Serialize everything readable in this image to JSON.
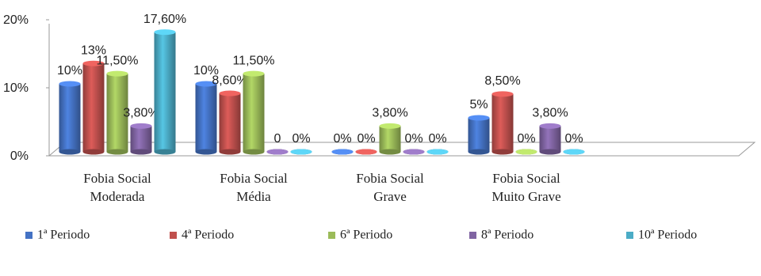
{
  "chart_data": {
    "type": "bar",
    "categories": [
      "Fobia Social Moderada",
      "Fobia Social Média",
      "Fobia Social Grave",
      "Fobia Social Muito Grave"
    ],
    "series": [
      {
        "name": "1ª Periodo",
        "color": "#4472c4",
        "values": [
          10,
          10,
          0,
          5
        ],
        "value_labels": [
          "10%",
          "10%",
          "0%",
          "5%"
        ]
      },
      {
        "name": "4ª Periodo",
        "color": "#c0504d",
        "values": [
          13,
          8.6,
          0,
          8.5
        ],
        "value_labels": [
          "13%",
          "8,60%",
          "0%",
          "8,50%"
        ]
      },
      {
        "name": "6ª Periodo",
        "color": "#9bbb59",
        "values": [
          11.5,
          11.5,
          3.8,
          0
        ],
        "value_labels": [
          "11,50%",
          "11,50%",
          "3,80%",
          "0%"
        ]
      },
      {
        "name": "8ª Periodo",
        "color": "#8064a2",
        "values": [
          3.8,
          0,
          0,
          3.8
        ],
        "value_labels": [
          "3,80%",
          "0",
          "0%",
          "3,80%"
        ]
      },
      {
        "name": "10ª Periodo",
        "color": "#4bacc6",
        "values": [
          17.6,
          0,
          0,
          0
        ],
        "value_labels": [
          "17,60%",
          "0%",
          "0%",
          "0%"
        ]
      }
    ],
    "ylim": [
      0,
      20
    ],
    "yticks": [
      {
        "value": 0,
        "label": "0%"
      },
      {
        "value": 10,
        "label": "10%"
      },
      {
        "value": 20,
        "label": "20%"
      }
    ]
  }
}
